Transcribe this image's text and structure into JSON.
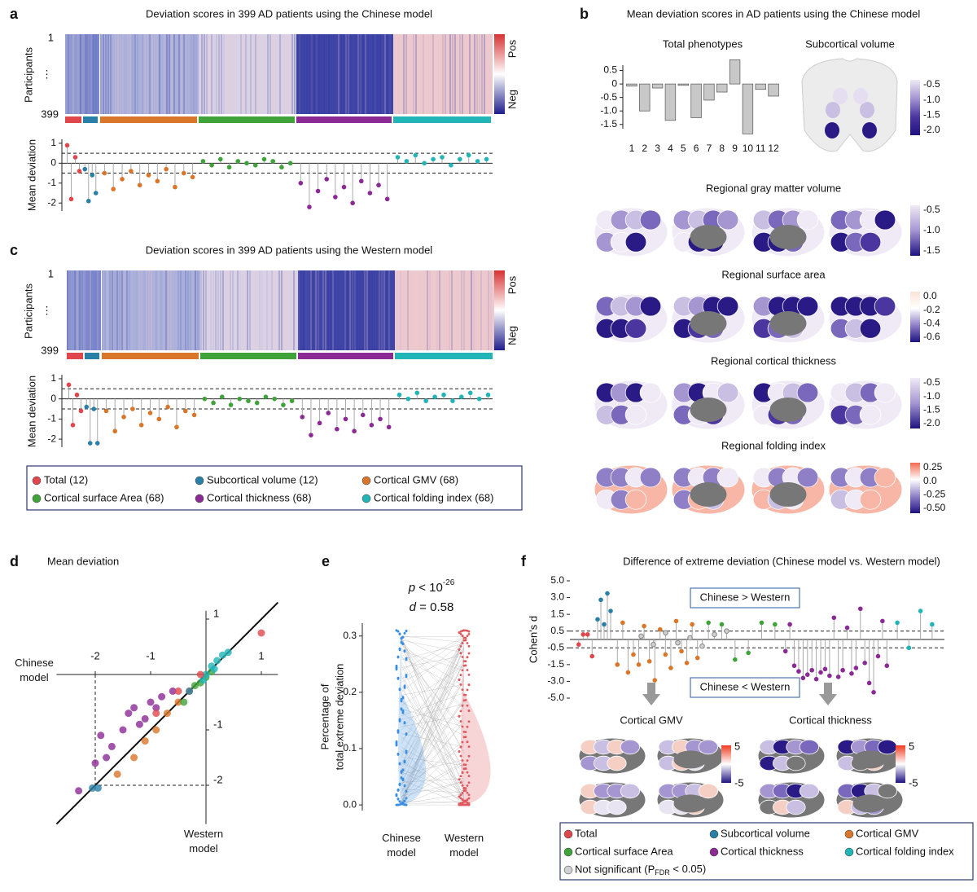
{
  "panel_a": {
    "letter": "a",
    "title": "Deviation scores in 399 AD patients using the Chinese model",
    "ylabel": "Participants",
    "row_labels": [
      "1",
      "⋮",
      "399"
    ],
    "colorbar_labels": [
      "Pos",
      "Neg"
    ],
    "lollipop": {
      "type": "lollipop",
      "ylabel": "Mean deviation",
      "ylim": [
        -2.4,
        1.2
      ],
      "yticks": [
        1,
        0,
        -1,
        -2
      ],
      "ref_lines": [
        0.5,
        -0.5
      ],
      "series": [
        {
          "color": "#e0474c",
          "values": [
            0.9,
            -1.8,
            0.3,
            -0.4
          ]
        },
        {
          "color": "#2a7fa6",
          "values": [
            -0.3,
            -1.9,
            -0.6,
            -1.5
          ]
        },
        {
          "color": "#d9762a",
          "values": [
            -0.5,
            -1.3,
            -0.8,
            -0.4,
            -1.1,
            -0.6,
            -0.9,
            -0.3,
            -1.2,
            -0.5,
            -0.7
          ]
        },
        {
          "color": "#3fa33a",
          "values": [
            0.1,
            -0.1,
            0.2,
            -0.2,
            0.1,
            0.0,
            -0.1,
            0.2,
            0.1,
            -0.2,
            0.0
          ]
        },
        {
          "color": "#8b2a95",
          "values": [
            -1.0,
            -2.2,
            -1.4,
            -0.8,
            -1.7,
            -1.2,
            -2.0,
            -0.9,
            -1.5,
            -1.1,
            -1.8
          ]
        },
        {
          "color": "#22b5b8",
          "values": [
            0.3,
            0.1,
            0.4,
            0.0,
            0.2,
            0.3,
            -0.1,
            0.2,
            0.4,
            0.1,
            0.2
          ]
        }
      ]
    }
  },
  "panel_c": {
    "letter": "c",
    "title": "Deviation scores in 399 AD patients using the Western model",
    "ylabel": "Participants",
    "row_labels": [
      "1",
      "⋮",
      "399"
    ],
    "colorbar_labels": [
      "Pos",
      "Neg"
    ],
    "lollipop": {
      "type": "lollipop",
      "ylabel": "Mean deviation",
      "ylim": [
        -2.4,
        1.2
      ],
      "yticks": [
        1,
        0,
        -1,
        -2
      ],
      "ref_lines": [
        0.5,
        -0.5
      ],
      "series": [
        {
          "color": "#e0474c",
          "values": [
            0.7,
            -1.3,
            0.2,
            -0.6
          ]
        },
        {
          "color": "#2a7fa6",
          "values": [
            -0.4,
            -2.2,
            -0.5,
            -2.2
          ]
        },
        {
          "color": "#d9762a",
          "values": [
            -0.6,
            -1.6,
            -0.9,
            -0.5,
            -1.3,
            -0.7,
            -1.0,
            -0.4,
            -1.4,
            -0.6,
            -0.8
          ]
        },
        {
          "color": "#3fa33a",
          "values": [
            0.0,
            -0.2,
            0.1,
            -0.3,
            0.0,
            -0.1,
            -0.2,
            0.1,
            0.0,
            -0.3,
            -0.1
          ]
        },
        {
          "color": "#8b2a95",
          "values": [
            -0.9,
            -1.8,
            -1.2,
            -0.7,
            -1.5,
            -1.0,
            -1.6,
            -0.8,
            -1.3,
            -1.0,
            -1.4
          ]
        },
        {
          "color": "#22b5b8",
          "values": [
            0.2,
            0.0,
            0.3,
            -0.1,
            0.1,
            0.2,
            -0.1,
            0.1,
            0.3,
            0.0,
            0.2
          ]
        }
      ]
    }
  },
  "legend_ac": {
    "items": [
      {
        "name": "Total (12)",
        "color": "#e0474c"
      },
      {
        "name": "Subcortical volume (12)",
        "color": "#2a7fa6"
      },
      {
        "name": "Cortical GMV (68)",
        "color": "#d9762a"
      },
      {
        "name": "Cortical surface Area (68)",
        "color": "#3fa33a"
      },
      {
        "name": "Cortical thickness (68)",
        "color": "#8b2a95"
      },
      {
        "name": "Cortical folding index (68)",
        "color": "#22b5b8"
      }
    ]
  },
  "panel_b": {
    "letter": "b",
    "title": "Mean deviation scores in AD patients using the Chinese model",
    "bar": {
      "type": "bar",
      "title": "Total phenotypes",
      "categories": [
        "1",
        "2",
        "3",
        "4",
        "5",
        "6",
        "7",
        "8",
        "9",
        "10",
        "11",
        "12"
      ],
      "values": [
        -0.08,
        -1.0,
        -0.15,
        -1.35,
        -0.05,
        -1.25,
        -0.6,
        -0.3,
        0.9,
        -1.85,
        -0.2,
        -0.45
      ],
      "color": "#c8c8c8",
      "ylim": [
        -1.9,
        1.0
      ],
      "yticks": [
        0.5,
        0,
        -0.5,
        {
          "value": -1,
          "label": "-1.0"
        },
        -1.5
      ]
    },
    "subcortical": {
      "title": "Subcortical volume",
      "colorbar_labels": [
        "-0.5",
        "-1.0",
        "-1.5",
        "-2.0"
      ]
    },
    "regional": [
      {
        "title": "Regional gray matter volume",
        "colorbar_labels": [
          "-0.5",
          "-1.0",
          "-1.5"
        ]
      },
      {
        "title": "Regional surface area",
        "colorbar_labels": [
          "0.0",
          "-0.2",
          "-0.4",
          "-0.6"
        ]
      },
      {
        "title": "Regional cortical thickness",
        "colorbar_labels": [
          "-0.5",
          "-1.0",
          "-1.5",
          "-2.0"
        ]
      },
      {
        "title": "Regional folding index",
        "colorbar_labels": [
          "0.25",
          "0.0",
          "-0.25",
          "-0.50"
        ]
      }
    ]
  },
  "panel_d": {
    "letter": "d",
    "title": "Mean deviation",
    "chart": {
      "type": "scatter",
      "ylabel": "Chinese model",
      "xlabel": "Western model",
      "xlim": [
        -2.7,
        1.3
      ],
      "ylim": [
        -2.7,
        1.15
      ],
      "xticks": [
        -2,
        -1,
        1
      ],
      "yticks": [
        1,
        -1,
        -2
      ],
      "ref_point": [
        -2,
        -2
      ],
      "series": [
        {
          "color": "#8b2a95",
          "x": [
            -2.3,
            -2.0,
            -1.9,
            -1.7,
            -1.5,
            -1.3,
            -1.2,
            -1.0,
            -0.8,
            -0.6,
            -1.4,
            -1.8,
            -1.1,
            -0.9
          ],
          "y": [
            -2.1,
            -1.6,
            -1.1,
            -1.3,
            -1.0,
            -0.6,
            -0.9,
            -0.5,
            -0.4,
            -0.3,
            -0.7,
            -1.5,
            -0.8,
            -0.6
          ]
        },
        {
          "color": "#d9762a",
          "x": [
            -1.3,
            -1.1,
            -0.9,
            -0.7,
            -0.5,
            -0.3,
            -1.6
          ],
          "y": [
            -1.5,
            -1.2,
            -1.0,
            -0.7,
            -0.5,
            -0.3,
            -1.8
          ]
        },
        {
          "color": "#3fa33a",
          "x": [
            -0.4,
            -0.2,
            0,
            -0.1,
            0.1
          ],
          "y": [
            -0.5,
            -0.2,
            -0.05,
            -0.15,
            0.05
          ]
        },
        {
          "color": "#2a7fa6",
          "x": [
            -2.05,
            -1.95,
            -0.3
          ],
          "y": [
            -2.05,
            -2.05,
            -0.3
          ]
        },
        {
          "color": "#22b5b8",
          "x": [
            0,
            0.1,
            0.2,
            0.3,
            0.4,
            -0.05,
            0.15
          ],
          "y": [
            0,
            0.15,
            0.25,
            0.35,
            0.4,
            -0.1,
            0.1
          ]
        },
        {
          "color": "#e0474c",
          "x": [
            1.0,
            -0.1,
            -0.5,
            -0.9
          ],
          "y": [
            0.75,
            0.0,
            -0.3,
            -0.7
          ]
        }
      ]
    }
  },
  "panel_e": {
    "letter": "e",
    "p_symbol": "p",
    "p_text": " < 10",
    "p_exponent": "-26",
    "d_symbol": "d",
    "d_text": " = 0.58",
    "ylabel": [
      "Percentage of",
      "total extreme deviation"
    ],
    "categories": [
      "Chinese model",
      "Western model"
    ],
    "colors": [
      "#3b8fe0",
      "#e0585e"
    ],
    "ylim": [
      -0.01,
      0.33
    ],
    "yticks": [
      {
        "value": 0,
        "label": "0.0"
      },
      0.1,
      0.2,
      0.3
    ]
  },
  "panel_f": {
    "letter": "f",
    "title": "Difference of extreme deviation (Chinese model vs. Western model)",
    "chart": {
      "type": "lollipop",
      "scale": "piecewise",
      "ylabel": "Cohen's d",
      "yticks": [
        {
          "value": 5,
          "label": "5.0"
        },
        {
          "value": 3,
          "label": "3.0"
        },
        1.5,
        0.5,
        -0.5,
        -1.5,
        {
          "value": -3,
          "label": "-3.0"
        },
        {
          "value": -5,
          "label": "-5.0"
        }
      ],
      "ref_lines": [
        0.5,
        -0.5
      ],
      "annotations": [
        "Chinese > Western",
        "Chinese < Western"
      ],
      "series": [
        {
          "color": "#e0474c",
          "values": [
            -0.3,
            0.3,
            0.3,
            -1.0
          ]
        },
        {
          "color": "#2a7fa6",
          "values": [
            1.2,
            2.8,
            0.9,
            3.5,
            1.8
          ]
        },
        {
          "color": "#d9762a",
          "values": [
            -1.5,
            1.0,
            -2.2,
            -0.9,
            -1.5,
            0.8,
            -1.3,
            -2.9,
            0.6,
            -0.9,
            -1.8,
            1.1,
            -0.7,
            -1.4,
            0.9,
            -1.1
          ]
        },
        {
          "color": "#d0d0d0",
          "values": [
            0.2,
            -0.3,
            0.4,
            -0.2,
            0.1,
            -0.4,
            0.3,
            0.5
          ]
        },
        {
          "color": "#3fa33a",
          "values": [
            1.0,
            0.9,
            -1.2,
            -0.8,
            1.0,
            0.9
          ]
        },
        {
          "color": "#8b2a95",
          "values": [
            -0.7,
            0.9,
            -1.6,
            -2.1,
            -2.7,
            -2.4,
            -2.0,
            -2.8,
            -2.2,
            -1.9,
            -2.5,
            1.3,
            -2.6,
            -2.0,
            0.7,
            -2.3,
            -1.8,
            2.0,
            -1.4,
            -3.2,
            -4.3,
            -1.0,
            1.1,
            -1.6
          ]
        },
        {
          "color": "#22b5b8",
          "values": [
            1.0,
            -0.5,
            1.8,
            0.9
          ]
        }
      ]
    },
    "maps": [
      {
        "title": "Cortical GMV",
        "colorbar_labels": [
          "5",
          "-5"
        ]
      },
      {
        "title": "Cortical thickness",
        "colorbar_labels": [
          "5",
          "-5"
        ]
      }
    ],
    "legend": {
      "items": [
        {
          "name": "Total",
          "color": "#e0474c"
        },
        {
          "name": "Subcortical volume",
          "color": "#2a7fa6"
        },
        {
          "name": "Cortical GMV",
          "color": "#d9762a"
        },
        {
          "name": "Cortical surface Area",
          "color": "#3fa33a"
        },
        {
          "name": "Cortical thickness",
          "color": "#8b2a95"
        },
        {
          "name": "Cortical folding index",
          "color": "#22b5b8"
        },
        {
          "name": "Not significant (P",
          "sub": "FDR",
          "rest": " < 0.05)",
          "color": "#d0d0d0"
        }
      ]
    }
  }
}
